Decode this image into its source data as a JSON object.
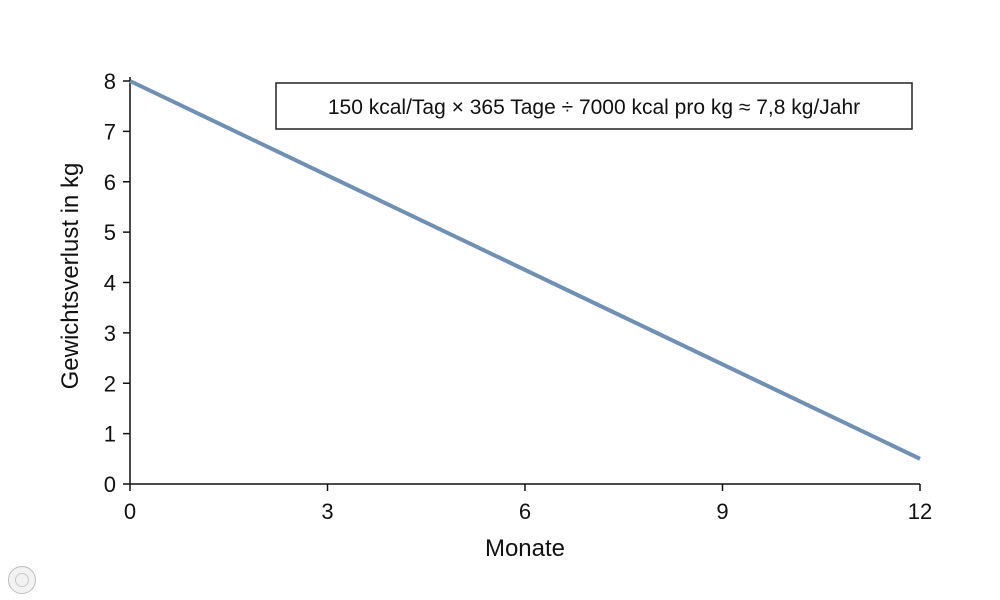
{
  "chart_data": {
    "type": "line",
    "xlabel": "Monate",
    "ylabel": "Gewichtsverlust in kg",
    "xlim": [
      0,
      12
    ],
    "ylim": [
      0,
      8
    ],
    "xticks": [
      "0",
      "3",
      "6",
      "9",
      "12"
    ],
    "yticks": [
      "0",
      "1",
      "2",
      "3",
      "4",
      "5",
      "6",
      "7",
      "8"
    ],
    "grid": false,
    "series": [
      {
        "x": [
          0,
          12
        ],
        "y": [
          8,
          0.5
        ],
        "color": "#6f8fb3"
      }
    ],
    "annotation": "150 kcal/Tag × 365 Tage ÷ 7000 kcal pro kg ≈ 7,8 kg/Jahr"
  }
}
